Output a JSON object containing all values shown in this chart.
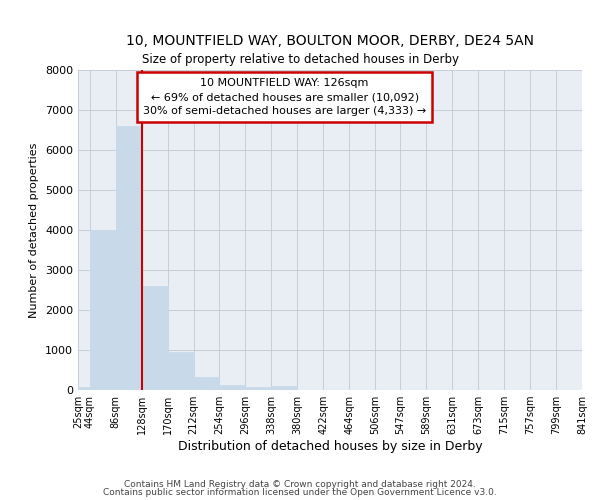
{
  "title1": "10, MOUNTFIELD WAY, BOULTON MOOR, DERBY, DE24 5AN",
  "title2": "Size of property relative to detached houses in Derby",
  "xlabel": "Distribution of detached houses by size in Derby",
  "ylabel": "Number of detached properties",
  "bin_edges": [
    25,
    44,
    86,
    128,
    170,
    212,
    254,
    296,
    338,
    380,
    422,
    464,
    506,
    547,
    589,
    631,
    673,
    715,
    757,
    799,
    841
  ],
  "bar_heights": [
    70,
    4000,
    6600,
    2600,
    960,
    320,
    120,
    80,
    90,
    0,
    0,
    0,
    0,
    0,
    0,
    0,
    0,
    0,
    0,
    0
  ],
  "bar_color": "#c8daea",
  "bar_edgecolor": "#c8daea",
  "bar_linewidth": 0.5,
  "property_line_x": 128,
  "property_line_color": "#cc0000",
  "ylim": [
    0,
    8000
  ],
  "yticks": [
    0,
    1000,
    2000,
    3000,
    4000,
    5000,
    6000,
    7000,
    8000
  ],
  "annotation_title": "10 MOUNTFIELD WAY: 126sqm",
  "annotation_line1": "← 69% of detached houses are smaller (10,092)",
  "annotation_line2": "30% of semi-detached houses are larger (4,333) →",
  "annotation_box_color": "#cc0000",
  "annotation_bg": "#ffffff",
  "grid_color": "#c5cdd8",
  "background_color": "#e8eef4",
  "footer1": "Contains HM Land Registry data © Crown copyright and database right 2024.",
  "footer2": "Contains public sector information licensed under the Open Government Licence v3.0.",
  "x_tick_labels": [
    "25sqm",
    "44sqm",
    "86sqm",
    "128sqm",
    "170sqm",
    "212sqm",
    "254sqm",
    "296sqm",
    "338sqm",
    "380sqm",
    "422sqm",
    "464sqm",
    "506sqm",
    "547sqm",
    "589sqm",
    "631sqm",
    "673sqm",
    "715sqm",
    "757sqm",
    "799sqm",
    "841sqm"
  ]
}
